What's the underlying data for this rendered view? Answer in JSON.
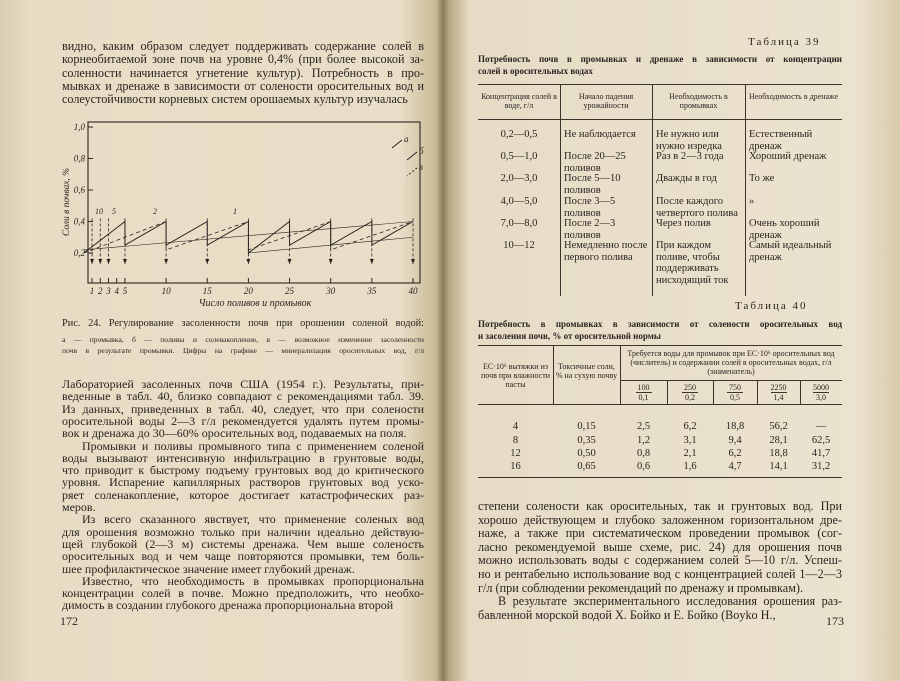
{
  "left_page": {
    "text_top": [
      [
        "видно, каким образом следует поддерживать содержание солей в",
        "корнеобитаемой зоне почв на уровне 0,4% (при более высокой за-",
        "соленности начинается угнетение культур). Потребность в про-",
        "мывках и дренаже в зависимости от солености оросительных вод и",
        "солеустойчивости корневых систем орошаемых культур изучалась"
      ]
    ],
    "figure": {
      "y_label": "Соли в почвах, %",
      "y_ticks": [
        "1,0",
        "0,8",
        "0,6",
        "0,4",
        "0,2"
      ],
      "x_ticks": [
        "1",
        "2",
        "3",
        "4",
        "5",
        "10",
        "15",
        "20",
        "25",
        "30",
        "35",
        "40"
      ],
      "x_label": "Число поливов и промывок",
      "legend": [
        "а",
        "б",
        "в"
      ],
      "curve_labels": [
        "10",
        "5",
        "2",
        "1"
      ]
    },
    "caption": [
      "Рис. 24. Регулирование засоленности почв при орошении соленой водой:",
      "а — промывка, б — поливы и солевакопление, в — возможное изменение засоленности",
      "почв в результате промывки. Цифры на графике — минерализация оросительных вод, г/л"
    ],
    "text_bottom": [
      [
        "Лабораторией засоленных почв США (1954 г.). Результаты, при-",
        "веденные в табл. 40, близко совпадают с рекомендациями табл. 39.",
        "Из данных, приведенных в табл. 40, следует, что при солености",
        "оросительной воды 2—3 г/л рекомендуется удалять путем промы-",
        "вок и дренажа до 30—60% оросительных вод, подаваемых на поля."
      ],
      [
        "Промывки и поливы промывного типа с применением соленой",
        "воды вызывают интенсивную инфильтрацию в грунтовые воды,",
        "что приводит к быстрому подъему грунтовых вод до критического",
        "уровня. Испарение капиллярных растворов грунтовых вод уско-",
        "ряет соленакопление, которое достигает катастрофических раз-",
        "меров."
      ],
      [
        "Из всего сказанного явствует, что применение соленых вод",
        "для орошения возможно только при наличии идеально действую-",
        "щей глубокой (2—3 м) системы дренажа. Чем выше соленость",
        "оросительных вод и чем чаще повторяются промывки, тем боль-",
        "шее профилактическое значение имеет глубокий дренаж."
      ],
      [
        "Известно, что необходимость в промывках пропорциональна",
        "концентрации солей в почве. Можно предположить, что необхо-",
        "димость в создании глубокого дренажа пропорциональна второй"
      ]
    ],
    "page_number": "172"
  },
  "right_page": {
    "table_39": {
      "label": "Таблица 39",
      "title": [
        "Потребность почв в промывках и дренаже в зависимости от концентрации",
        "солей в оросительных водах"
      ],
      "headers": [
        "Концентрация солей в воде, г/л",
        "Начало падения урожайности",
        "Необходимость в промывках",
        "Необходимость в дренаже"
      ],
      "rows": [
        [
          "0,2—0,5",
          "Не наблюдается",
          "Не нужно или нужно изредка",
          "Естественный дренаж"
        ],
        [
          "0,5—1,0",
          "После 20—25 поливов",
          "Раз в 2—3 года",
          "Хороший дренаж"
        ],
        [
          "2,0—3,0",
          "После 5—10 поливов",
          "Дважды в год",
          "То же"
        ],
        [
          "4,0—5,0",
          "После 3—5 поливов",
          "После каждого четвертого полива",
          "»"
        ],
        [
          "7,0—8,0",
          "После 2—3 поливов",
          "Через полив",
          "Очень хороший дренаж"
        ],
        [
          "10—12",
          "Немедленно после первого полива",
          "При каждом поливе, чтобы поддерживать нисходящий ток",
          "Самый идеальный дренаж"
        ]
      ]
    },
    "table_40": {
      "label": "Таблица 40",
      "title": [
        "Потребность в промывках в зависимости от солености оросительных вод",
        "и засоления почв, % от оросительной нормы"
      ],
      "headers": [
        "ЕС·10⁶ вытяжки из почв при влажности пасты",
        "Токсичные соли, % на сухую почву"
      ],
      "group_header": "Требуется воды для промывок при ЕС·10⁶ оросительных вод (числитель) и содержании солей в оросительных водах, г/л (знаменатель)",
      "subheaders": [
        {
          "numerator": "100",
          "denominator": "0,1"
        },
        {
          "numerator": "250",
          "denominator": "0,2"
        },
        {
          "numerator": "750",
          "denominator": "0,5"
        },
        {
          "numerator": "2250",
          "denominator": "1,4"
        },
        {
          "numerator": "5000",
          "denominator": "3,0"
        }
      ],
      "rows": [
        [
          "4",
          "0,15",
          "2,5",
          "6,2",
          "18,8",
          "56,2",
          "—"
        ],
        [
          "8",
          "0,35",
          "1,2",
          "3,1",
          "9,4",
          "28,1",
          "62,5"
        ],
        [
          "12",
          "0,50",
          "0,8",
          "2,1",
          "6,2",
          "18,8",
          "41,7"
        ],
        [
          "16",
          "0,65",
          "0,6",
          "1,6",
          "4,7",
          "14,1",
          "31,2"
        ]
      ]
    },
    "text": [
      [
        "степени солености как оросительных, так и грунтовых вод. При",
        "хорошо действующем и глубоко заложенном горизонтальном дре-",
        "наже, а также при систематическом проведении промывок (сог-",
        "ласно рекомендуемой выше схеме, рис. 24) для орошения почв",
        "можно использовать воды с содержанием солей 5—10 г/л. Успеш-",
        "но и рентабельно использование вод с концентрацией солей 1—2—3",
        "г/л (при соблюдении рекомендаций по дренажу и промывкам)."
      ],
      [
        "В результате экспериментального исследования орошения раз-",
        "бавленной морской водой Х. Бойко и Е. Бойко (Boyko H.,"
      ]
    ],
    "page_number": "173"
  }
}
